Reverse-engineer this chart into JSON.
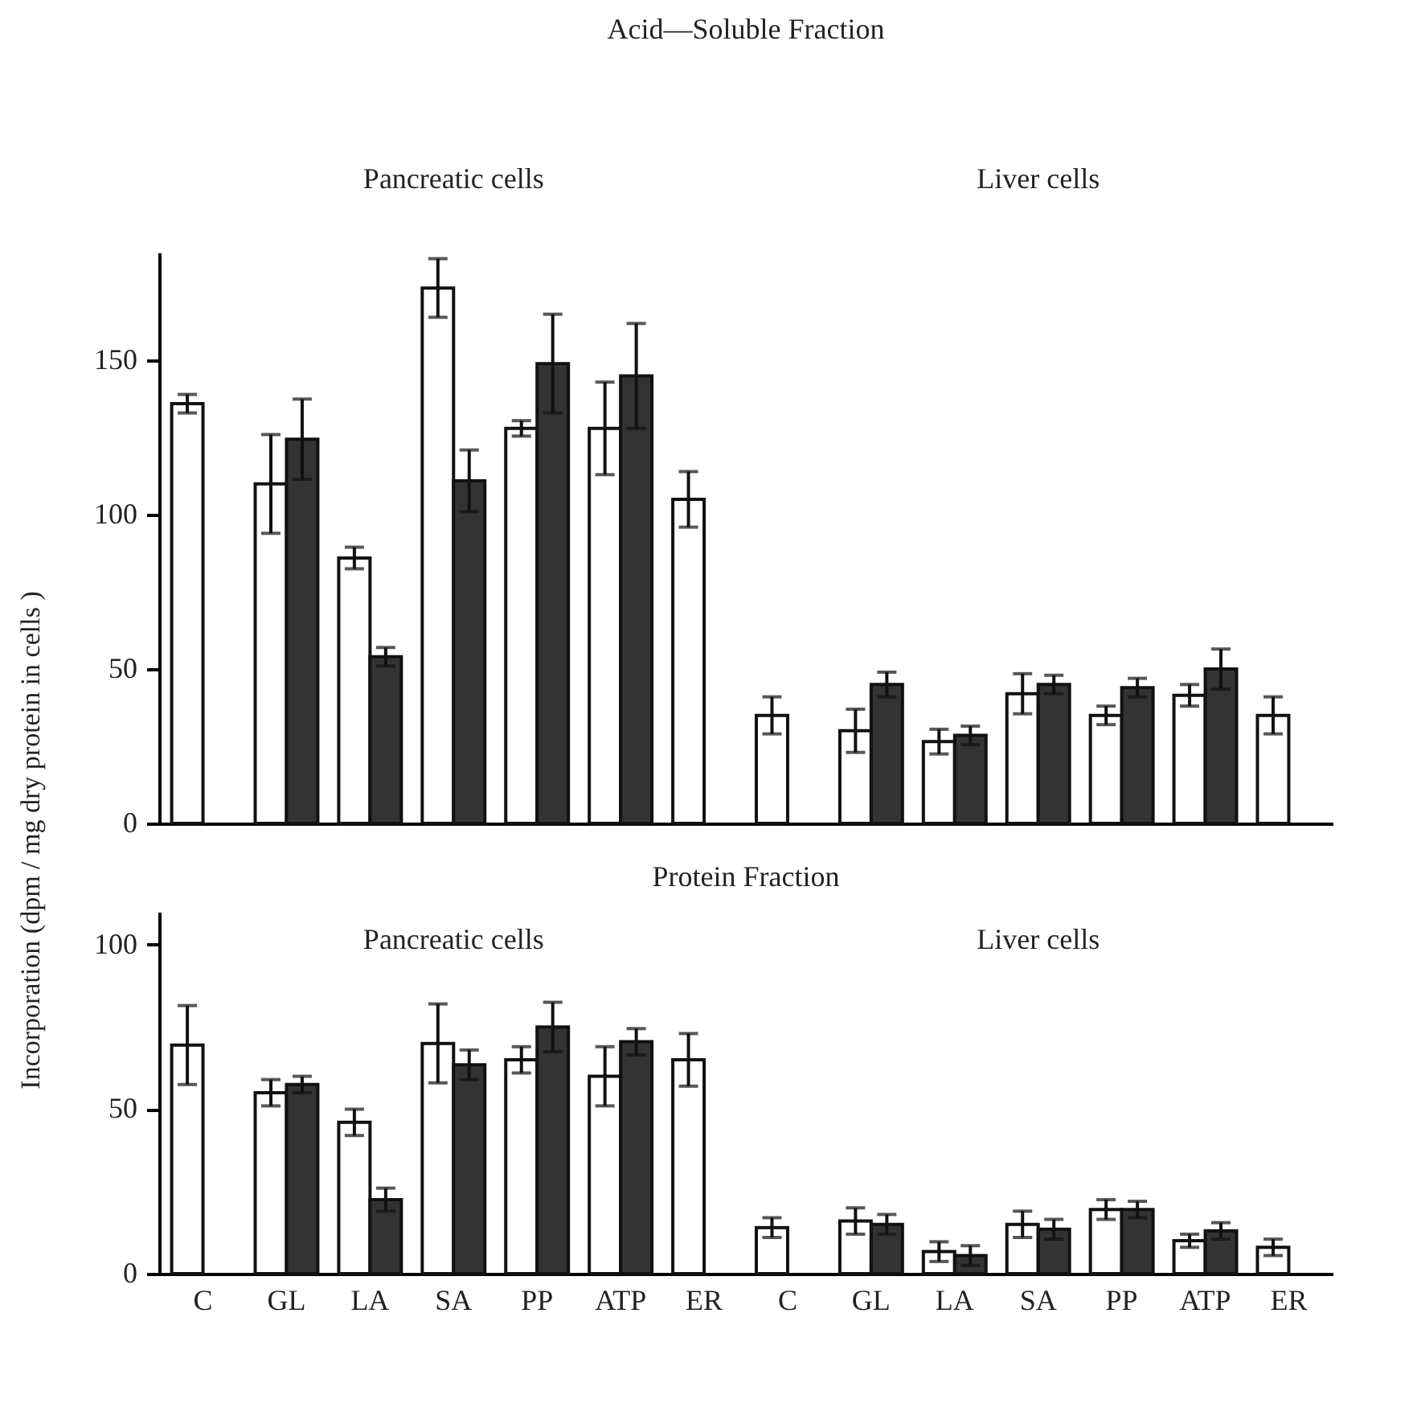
{
  "chart_data": [
    {
      "type": "bar",
      "title": "Acid—Soluble Fraction",
      "ylabel": "Incorporation (dpm / mg dry protein in cells )",
      "annotations": [
        "Pancreatic cells",
        "Liver cells"
      ],
      "categories": [
        null,
        null,
        null,
        null,
        null,
        null,
        null,
        null,
        null,
        null,
        null,
        null,
        null,
        null
      ],
      "series": [
        {
          "color": "#ffffff",
          "values": [
            136,
            110,
            86,
            173.5,
            128,
            128,
            105,
            35,
            30,
            26.5,
            42,
            35,
            41.5,
            35
          ],
          "errors": [
            3,
            16,
            3.5,
            9.5,
            2.5,
            15,
            9,
            6,
            7,
            4,
            6.5,
            3,
            3.5,
            6
          ]
        },
        {
          "color": "#333333",
          "values": [
            null,
            124.5,
            54,
            111,
            149,
            145,
            null,
            null,
            45,
            28.5,
            45,
            44,
            50,
            null
          ],
          "errors": [
            null,
            13,
            3,
            10,
            16,
            17,
            null,
            null,
            4,
            3,
            3,
            3,
            6.5,
            null
          ]
        }
      ],
      "ylim": [
        0,
        185
      ],
      "yticks": [
        0,
        50,
        100,
        150
      ],
      "tick_labels": "y",
      "grid": false,
      "legend": false
    },
    {
      "type": "bar",
      "title": "Protein Fraction",
      "annotations": [
        "Pancreatic cells",
        "Liver cells"
      ],
      "categories": [
        "C",
        "GL",
        "LA",
        "SA",
        "PP",
        "ATP",
        "ER",
        "C",
        "GL",
        "LA",
        "SA",
        "PP",
        "ATP",
        "ER"
      ],
      "series": [
        {
          "color": "#ffffff",
          "values": [
            69.5,
            55,
            46,
            70,
            65,
            60,
            65,
            14,
            16,
            6.7,
            15,
            19.5,
            10,
            8
          ],
          "errors": [
            12,
            4,
            4,
            12,
            4,
            9,
            8,
            3,
            4,
            3,
            4,
            3,
            2,
            2.5
          ]
        },
        {
          "color": "#333333",
          "values": [
            null,
            57.5,
            22.5,
            63.5,
            75,
            70.5,
            null,
            null,
            15,
            5.5,
            13.5,
            19.5,
            13,
            null
          ],
          "errors": [
            null,
            2.5,
            3.5,
            4.5,
            7.5,
            4,
            null,
            null,
            3,
            3,
            3,
            2.5,
            2.5,
            null
          ]
        }
      ],
      "ylim": [
        0,
        110
      ],
      "yticks": [
        0,
        50,
        100
      ],
      "grid": false,
      "legend": false
    }
  ]
}
